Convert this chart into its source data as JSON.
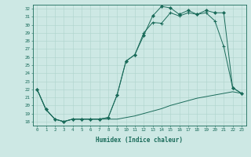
{
  "xlabel": "Humidex (Indice chaleur)",
  "xlim": [
    -0.5,
    23.5
  ],
  "ylim": [
    17.5,
    32.5
  ],
  "xticks": [
    0,
    1,
    2,
    3,
    4,
    5,
    6,
    7,
    8,
    9,
    10,
    11,
    12,
    13,
    14,
    15,
    16,
    17,
    18,
    19,
    20,
    21,
    22,
    23
  ],
  "yticks": [
    18,
    19,
    20,
    21,
    22,
    23,
    24,
    25,
    26,
    27,
    28,
    29,
    30,
    31,
    32
  ],
  "bg_color": "#cde8e4",
  "line_color": "#1a6b5a",
  "grid_color": "#aed4cc",
  "line1_x": [
    0,
    1,
    2,
    3,
    4,
    5,
    6,
    7,
    8,
    9,
    10,
    11,
    12,
    13,
    14,
    15,
    16,
    17,
    18,
    19,
    20,
    21,
    22,
    23
  ],
  "line1_y": [
    22,
    19.5,
    18.3,
    18,
    18.3,
    18.3,
    18.3,
    18.3,
    18.3,
    18.3,
    18.5,
    18.7,
    19.0,
    19.3,
    19.6,
    20.0,
    20.3,
    20.6,
    20.9,
    21.1,
    21.3,
    21.5,
    21.7,
    21.5
  ],
  "line2_x": [
    0,
    1,
    2,
    3,
    4,
    5,
    6,
    7,
    8,
    9,
    10,
    11,
    12,
    13,
    14,
    15,
    16,
    17,
    18,
    19,
    20,
    21,
    22,
    23
  ],
  "line2_y": [
    22,
    19.5,
    18.3,
    18,
    18.3,
    18.3,
    18.3,
    18.3,
    18.5,
    21.3,
    25.5,
    26.3,
    29.0,
    30.3,
    30.2,
    31.5,
    31.1,
    31.5,
    31.3,
    31.5,
    30.5,
    27.3,
    22.2,
    21.5
  ],
  "line3_x": [
    0,
    1,
    2,
    3,
    4,
    5,
    6,
    7,
    8,
    9,
    10,
    11,
    12,
    13,
    14,
    15,
    16,
    17,
    18,
    19,
    20,
    21,
    22,
    23
  ],
  "line3_y": [
    22,
    19.5,
    18.3,
    18,
    18.3,
    18.3,
    18.3,
    18.3,
    18.5,
    21.3,
    25.5,
    26.3,
    28.7,
    31.1,
    32.3,
    32.1,
    31.3,
    31.8,
    31.3,
    31.8,
    31.5,
    31.5,
    22.2,
    21.5
  ]
}
